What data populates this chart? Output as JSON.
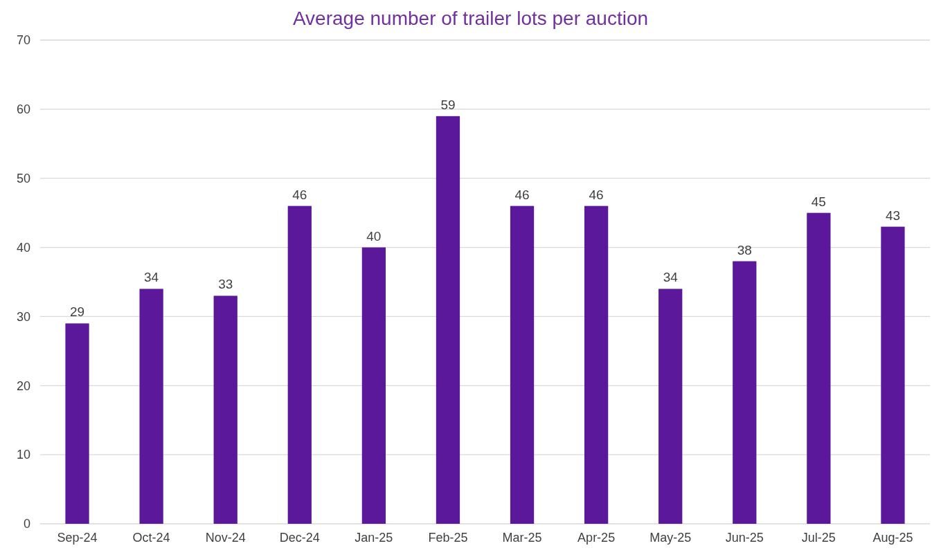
{
  "chart_data": {
    "type": "bar",
    "title": "Average number of trailer lots per auction",
    "categories": [
      "Sep-24",
      "Oct-24",
      "Nov-24",
      "Dec-24",
      "Jan-25",
      "Feb-25",
      "Mar-25",
      "Apr-25",
      "May-25",
      "Jun-25",
      "Jul-25",
      "Aug-25"
    ],
    "values": [
      29,
      34,
      33,
      46,
      40,
      59,
      46,
      46,
      34,
      38,
      45,
      43
    ],
    "color": "#5b189b",
    "ylim": [
      0,
      70
    ],
    "yticks": [
      0,
      10,
      20,
      30,
      40,
      50,
      60,
      70
    ],
    "grid": "y",
    "data_labels": true
  }
}
